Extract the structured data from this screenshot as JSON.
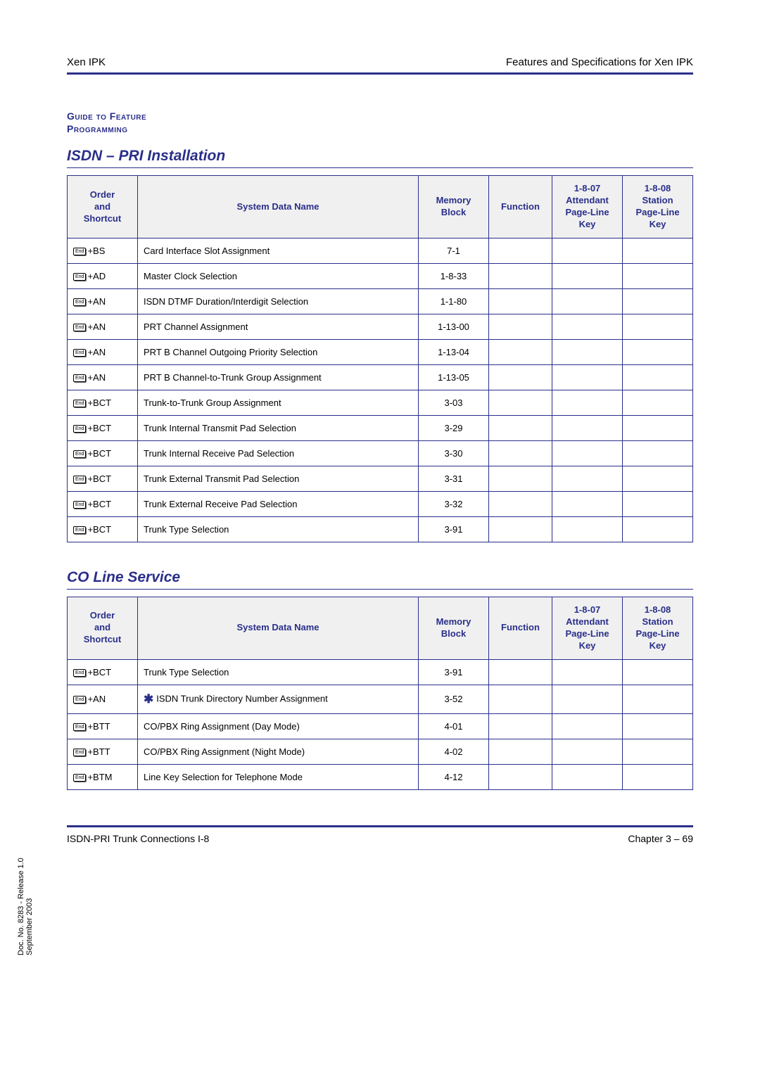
{
  "header": {
    "left": "Xen IPK",
    "right": "Features and Specifications for Xen IPK"
  },
  "guide_label_line1": "Guide to Feature",
  "guide_label_line2": "Programming",
  "section1": {
    "title": "ISDN – PRI Installation",
    "headers": {
      "shortcut": "Order\nand\nShortcut",
      "name": "System Data Name",
      "memory": "Memory\nBlock",
      "function": "Function",
      "attendant": "1-8-07\nAttendant\nPage-Line\nKey",
      "station": "1-8-08\nStation\nPage-Line\nKey"
    },
    "rows": [
      {
        "shortcut": "+BS",
        "name": "Card Interface Slot Assignment",
        "memory": "7-1"
      },
      {
        "shortcut": "+AD",
        "name": "Master Clock Selection",
        "memory": "1-8-33"
      },
      {
        "shortcut": "+AN",
        "name": "ISDN DTMF Duration/Interdigit Selection",
        "memory": "1-1-80"
      },
      {
        "shortcut": "+AN",
        "name": "PRT Channel Assignment",
        "memory": "1-13-00"
      },
      {
        "shortcut": "+AN",
        "name": "PRT B Channel Outgoing Priority Selection",
        "memory": "1-13-04"
      },
      {
        "shortcut": "+AN",
        "name": "PRT B Channel-to-Trunk Group Assignment",
        "memory": "1-13-05"
      },
      {
        "shortcut": "+BCT",
        "name": "Trunk-to-Trunk Group Assignment",
        "memory": "3-03"
      },
      {
        "shortcut": "+BCT",
        "name": "Trunk Internal Transmit Pad Selection",
        "memory": "3-29"
      },
      {
        "shortcut": "+BCT",
        "name": "Trunk Internal Receive Pad Selection",
        "memory": "3-30"
      },
      {
        "shortcut": "+BCT",
        "name": "Trunk External Transmit Pad Selection",
        "memory": "3-31"
      },
      {
        "shortcut": "+BCT",
        "name": "Trunk External Receive Pad Selection",
        "memory": "3-32"
      },
      {
        "shortcut": "+BCT",
        "name": "Trunk Type Selection",
        "memory": "3-91"
      }
    ]
  },
  "section2": {
    "title": "CO Line Service",
    "headers": {
      "shortcut": "Order\nand\nShortcut",
      "name": "System Data Name",
      "memory": "Memory\nBlock",
      "function": "Function",
      "attendant": "1-8-07\nAttendant\nPage-Line\nKey",
      "station": "1-8-08\nStation\nPage-Line\nKey"
    },
    "rows": [
      {
        "shortcut": "+BCT",
        "name": "Trunk Type Selection",
        "memory": "3-91",
        "star": false
      },
      {
        "shortcut": "+AN",
        "name": "ISDN Trunk Directory Number Assignment",
        "memory": "3-52",
        "star": true
      },
      {
        "shortcut": "+BTT",
        "name": "CO/PBX Ring Assignment (Day Mode)",
        "memory": "4-01",
        "star": false
      },
      {
        "shortcut": "+BTT",
        "name": "CO/PBX Ring Assignment (Night Mode)",
        "memory": "4-02",
        "star": false
      },
      {
        "shortcut": "+BTM",
        "name": "Line Key Selection for Telephone Mode",
        "memory": "4-12",
        "star": false
      }
    ]
  },
  "key_label": "End",
  "side_text": "Doc. No. 8283 - Release 1.0\nSeptember 2003",
  "footer": {
    "left": "ISDN-PRI Trunk Connections I-8",
    "right": "Chapter 3 – 69"
  },
  "colors": {
    "accent": "#2a2f8a",
    "header_bg": "#f0f0f0"
  }
}
